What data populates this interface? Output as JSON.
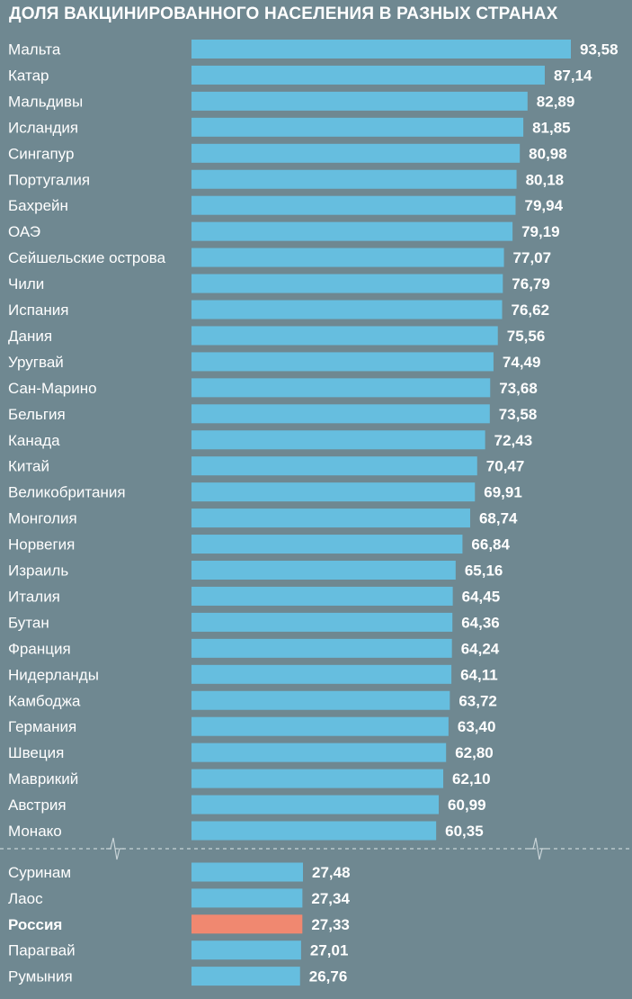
{
  "chart_data": {
    "type": "bar",
    "orientation": "horizontal",
    "title": "ДОЛЯ ВАКЦИНИРОВАННОГО НАСЕЛЕНИЯ В РАЗНЫХ СТРАНАХ",
    "axis_break": true,
    "colors": {
      "background": "#6f8891",
      "bar": "#66bedf",
      "highlight": "#f08870",
      "text": "#ffffff",
      "divider": "#c8d3d7"
    },
    "top_group": {
      "categories": [
        "Мальта",
        "Катар",
        "Мальдивы",
        "Исландия",
        "Сингапур",
        "Португалия",
        "Бахрейн",
        "ОАЭ",
        "Сейшельские острова",
        "Чили",
        "Испания",
        "Дания",
        "Уругвай",
        "Сан-Марино",
        "Бельгия",
        "Канада",
        "Китай",
        "Великобритания",
        "Монголия",
        "Норвегия",
        "Израиль",
        "Италия",
        "Бутан",
        "Франция",
        "Нидерланды",
        "Камбоджа",
        "Германия",
        "Швеция",
        "Маврикий",
        "Австрия",
        "Монако"
      ],
      "values": [
        93.58,
        87.14,
        82.89,
        81.85,
        80.98,
        80.18,
        79.94,
        79.19,
        77.07,
        76.79,
        76.62,
        75.56,
        74.49,
        73.68,
        73.58,
        72.43,
        70.47,
        69.91,
        68.74,
        66.84,
        65.16,
        64.45,
        64.36,
        64.24,
        64.11,
        63.72,
        63.4,
        62.8,
        62.1,
        60.99,
        60.35
      ],
      "value_labels": [
        "93,58",
        "87,14",
        "82,89",
        "81,85",
        "80,98",
        "80,18",
        "79,94",
        "79,19",
        "77,07",
        "76,79",
        "76,62",
        "75,56",
        "74,49",
        "73,68",
        "73,58",
        "72,43",
        "70,47",
        "69,91",
        "68,74",
        "66,84",
        "65,16",
        "64,45",
        "64,36",
        "64,24",
        "64,11",
        "63,72",
        "63,40",
        "62,80",
        "62,10",
        "60,99",
        "60,35"
      ]
    },
    "bottom_group": {
      "categories": [
        "Суринам",
        "Лаос",
        "Россия",
        "Парагвай",
        "Румыния"
      ],
      "values": [
        27.48,
        27.34,
        27.33,
        27.01,
        26.76
      ],
      "value_labels": [
        "27,48",
        "27,34",
        "27,33",
        "27,01",
        "26,76"
      ],
      "highlight": "Россия"
    }
  }
}
